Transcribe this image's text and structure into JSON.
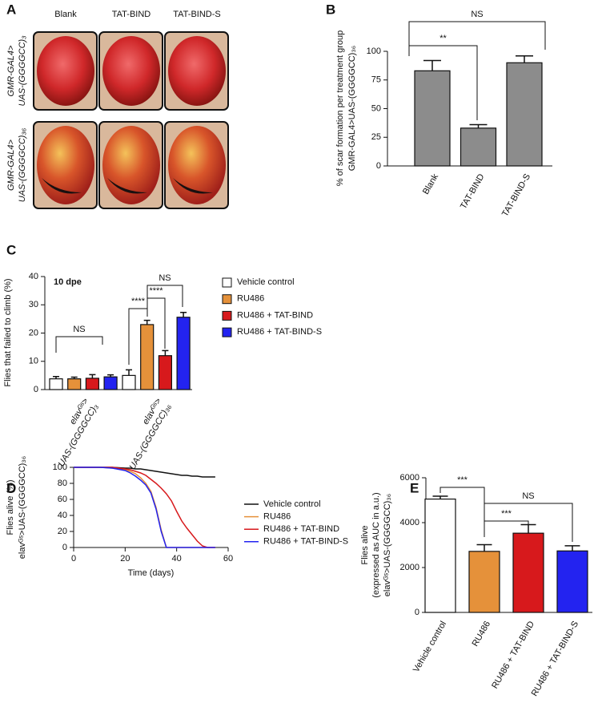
{
  "image_panel": {
    "letter": "A",
    "columns": [
      "Blank",
      "TAT-BIND",
      "TAT-BIND-S"
    ],
    "row_labels": [
      [
        "GMR-GAL4>",
        "UAS-(GGGGCC)₃"
      ],
      [
        "GMR-GAL4>",
        "UAS-(GGGGCC)₃₆"
      ]
    ]
  },
  "chart_data": [
    {
      "type": "bar",
      "letter": "B",
      "y_label": [
        "% of scar formation per treatment group",
        "GMR-GAL4>UAS-(GGGGCC)₃₆"
      ],
      "categories": [
        "Blank",
        "TAT-BIND",
        "TAT-BIND-S"
      ],
      "values": [
        83,
        33,
        90
      ],
      "errors": [
        9,
        3,
        6
      ],
      "color": "#8c8c8c",
      "ylim": [
        0,
        100
      ],
      "yticks": [
        0,
        25,
        50,
        75,
        100
      ],
      "annotations": [
        "**",
        "NS"
      ]
    },
    {
      "type": "bar",
      "letter": "C",
      "label": "10 dpe",
      "y_label": [
        "Flies that failed to climb (%)"
      ],
      "categories": [
        [
          "elavᴳˢ>",
          "UAS-(GGGGCC)₃"
        ],
        [
          "elavᴳˢ>",
          "UAS-(GGGGCC)₃₆"
        ]
      ],
      "series": [
        {
          "name": "Vehicle control",
          "color": "#ffffff",
          "values": [
            3.8,
            5
          ],
          "errors": [
            0.8,
            2
          ]
        },
        {
          "name": "RU486",
          "color": "#e5913a",
          "values": [
            3.8,
            23
          ],
          "errors": [
            0.6,
            1.5
          ]
        },
        {
          "name": "RU486 + TAT-BIND",
          "color": "#d7191c",
          "values": [
            4,
            12
          ],
          "errors": [
            1.3,
            1.8
          ]
        },
        {
          "name": "RU486 + TAT-BIND-S",
          "color": "#2323f0",
          "values": [
            4.5,
            25.6
          ],
          "errors": [
            0.7,
            1.7
          ]
        }
      ],
      "ylim": [
        0,
        40
      ],
      "yticks": [
        0,
        10,
        20,
        30,
        40
      ],
      "annotations": [
        "NS",
        "****",
        "****",
        "NS"
      ]
    },
    {
      "type": "line",
      "letter": "D",
      "y_label": [
        "Flies alive (%)",
        "elavᴳˢ>UAS-(GGGGCC)₃₆"
      ],
      "x_label": "Time (days)",
      "x": [
        0,
        5,
        10,
        15,
        20,
        22,
        24,
        26,
        28,
        30,
        32,
        34,
        36,
        38,
        40,
        42,
        44,
        46,
        48,
        50,
        52,
        55
      ],
      "series": [
        {
          "name": "Vehicle control",
          "color": "#111111",
          "values": [
            100,
            100,
            100,
            100,
            99,
            99,
            98,
            98,
            97,
            96,
            95,
            94,
            93,
            92,
            91,
            90,
            90,
            89,
            89,
            88,
            88,
            88
          ]
        },
        {
          "name": "RU486",
          "color": "#e5913a",
          "values": [
            100,
            100,
            100,
            99,
            97,
            95,
            92,
            87,
            80,
            70,
            50,
            22,
            0,
            0,
            0,
            0,
            0,
            0,
            0,
            0,
            0,
            0
          ]
        },
        {
          "name": "RU486 + TAT-BIND",
          "color": "#d7191c",
          "values": [
            100,
            100,
            100,
            100,
            98,
            97,
            95,
            93,
            90,
            85,
            80,
            74,
            67,
            58,
            45,
            33,
            24,
            16,
            8,
            2,
            0,
            0
          ]
        },
        {
          "name": "RU486 + TAT-BIND-S",
          "color": "#2323f0",
          "values": [
            100,
            100,
            100,
            99,
            96,
            93,
            89,
            84,
            78,
            68,
            48,
            20,
            0,
            0,
            0,
            0,
            0,
            0,
            0,
            0,
            0,
            0
          ]
        }
      ],
      "xlim": [
        0,
        60
      ],
      "xticks": [
        0,
        20,
        40,
        60
      ],
      "ylim": [
        0,
        100
      ],
      "yticks": [
        0,
        20,
        40,
        60,
        80,
        100
      ]
    },
    {
      "type": "bar",
      "letter": "E",
      "y_label": [
        "Flies alive",
        "(expressed as AUC in a.u.)",
        "elavᴳˢ>UAS-(GGGGCC)₃₆"
      ],
      "categories": [
        "Vehicle control",
        "RU486",
        "RU486 + TAT-BIND",
        "RU486 + TAT-BIND-S"
      ],
      "values": [
        5050,
        2720,
        3530,
        2740
      ],
      "errors": [
        130,
        300,
        380,
        230
      ],
      "colors": [
        "#ffffff",
        "#e5913a",
        "#d7191c",
        "#2323f0"
      ],
      "ylim": [
        0,
        6000
      ],
      "yticks": [
        0,
        2000,
        4000,
        6000
      ],
      "annotations": [
        "***",
        "***",
        "NS"
      ]
    }
  ]
}
